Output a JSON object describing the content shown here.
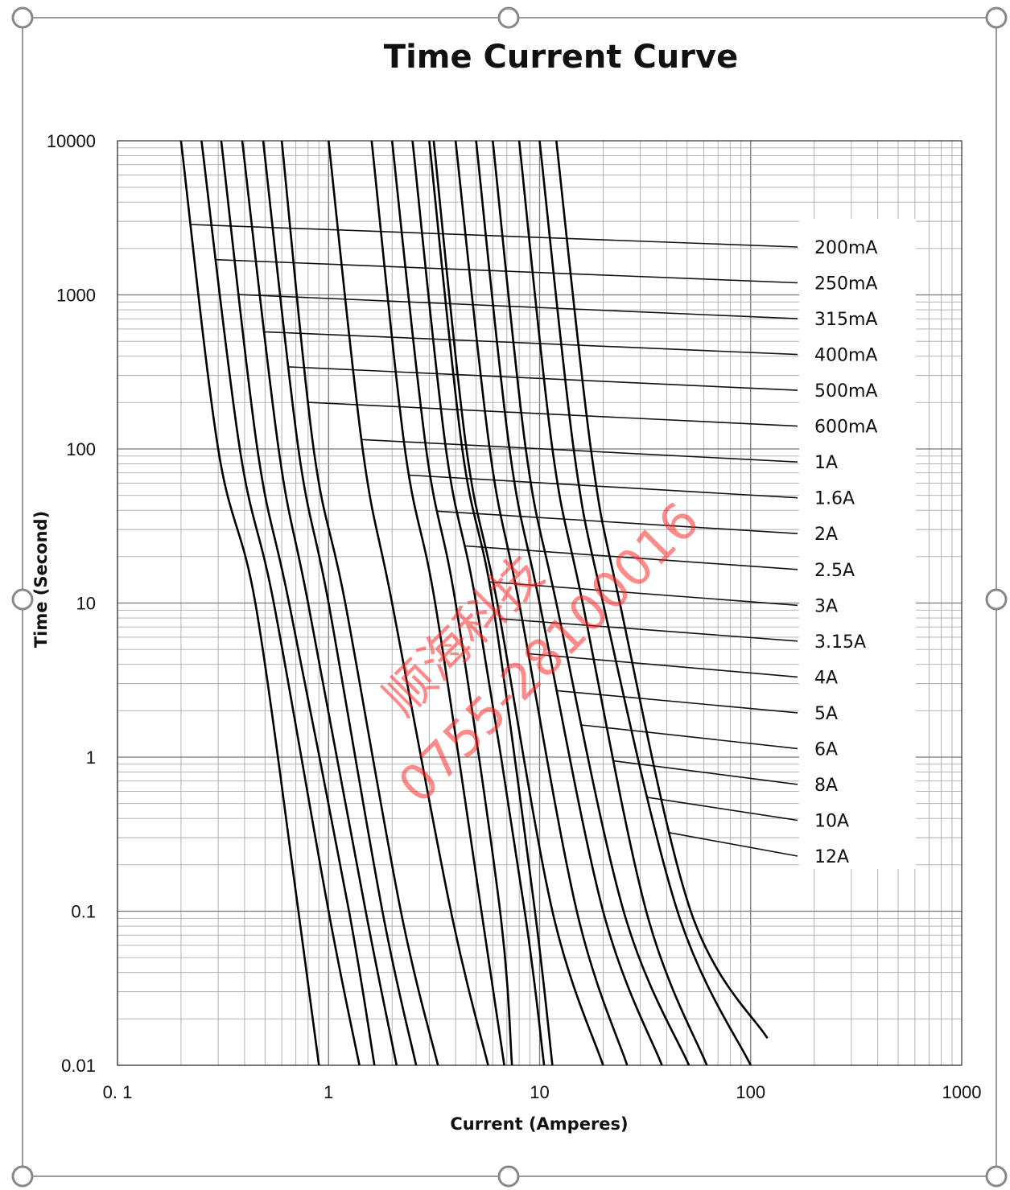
{
  "chart_data": {
    "type": "line",
    "title": "Time Current Curve",
    "xlabel": "Current  (Amperes)",
    "ylabel": "Time (Second)",
    "x_scale": "log",
    "y_scale": "log",
    "xlim": [
      0.1,
      1000
    ],
    "ylim": [
      0.01,
      10000
    ],
    "x_tick_labels": [
      "0. 1",
      "1",
      "10",
      "100",
      "1000"
    ],
    "y_tick_labels": [
      "10000",
      "1000",
      "100",
      "10",
      "1",
      "0.1",
      "0.01"
    ],
    "grid": true,
    "legend_placement": "right, labels with leader lines",
    "series": [
      {
        "name": "200mA",
        "x": [
          0.2,
          0.3,
          0.45,
          0.72,
          0.9
        ],
        "y": [
          10000,
          100,
          10,
          0.1,
          0.01
        ]
      },
      {
        "name": "250mA",
        "x": [
          0.25,
          0.38,
          0.55,
          1.0,
          1.4
        ],
        "y": [
          10000,
          100,
          10,
          0.1,
          0.01
        ]
      },
      {
        "name": "315mA",
        "x": [
          0.31,
          0.46,
          0.65,
          1.25,
          1.65
        ],
        "y": [
          10000,
          100,
          10,
          0.1,
          0.01
        ]
      },
      {
        "name": "400mA",
        "x": [
          0.39,
          0.58,
          0.8,
          1.5,
          2.1
        ],
        "y": [
          10000,
          100,
          10,
          0.1,
          0.01
        ]
      },
      {
        "name": "500mA",
        "x": [
          0.49,
          0.72,
          1.0,
          1.8,
          2.6
        ],
        "y": [
          10000,
          100,
          10,
          0.1,
          0.01
        ]
      },
      {
        "name": "600mA",
        "x": [
          0.6,
          0.85,
          1.2,
          2.2,
          3.3
        ],
        "y": [
          10000,
          100,
          10,
          0.1,
          0.01
        ]
      },
      {
        "name": "1A",
        "x": [
          1.0,
          1.45,
          2.0,
          3.8,
          5.7
        ],
        "y": [
          10000,
          100,
          10,
          0.1,
          0.01
        ]
      },
      {
        "name": "1.6A",
        "x": [
          1.6,
          2.3,
          3.2,
          5.3,
          6.8
        ],
        "y": [
          10000,
          100,
          10,
          0.1,
          0.01
        ]
      },
      {
        "name": "2A",
        "x": [
          2.0,
          2.9,
          4.0,
          6.5,
          7.4
        ],
        "y": [
          10000,
          100,
          10,
          0.1,
          0.01
        ]
      },
      {
        "name": "2.5A",
        "x": [
          2.5,
          3.6,
          5.0,
          8.5,
          10.5
        ],
        "y": [
          10000,
          100,
          10,
          0.1,
          0.01
        ]
      },
      {
        "name": "3A",
        "x": [
          3.0,
          4.3,
          6.0,
          9.5,
          11.5
        ],
        "y": [
          10000,
          100,
          10,
          0.1,
          0.01
        ]
      },
      {
        "name": "3.15A",
        "x": [
          3.15,
          4.5,
          6.3,
          11.5,
          20
        ],
        "y": [
          10000,
          100,
          10,
          0.1,
          0.01
        ]
      },
      {
        "name": "4A",
        "x": [
          4.0,
          5.8,
          8.0,
          15,
          26
        ],
        "y": [
          10000,
          100,
          10,
          0.1,
          0.01
        ]
      },
      {
        "name": "5A",
        "x": [
          5.0,
          7.2,
          10.0,
          20,
          38
        ],
        "y": [
          10000,
          100,
          10,
          0.1,
          0.01
        ]
      },
      {
        "name": "6A",
        "x": [
          6.0,
          8.6,
          12.0,
          25,
          51
        ],
        "y": [
          10000,
          100,
          10,
          0.1,
          0.01
        ]
      },
      {
        "name": "8A",
        "x": [
          8.0,
          11.5,
          16.0,
          32,
          62
        ],
        "y": [
          10000,
          100,
          10,
          0.1,
          0.01
        ]
      },
      {
        "name": "10A",
        "x": [
          10.0,
          14.5,
          20.0,
          45,
          100
        ],
        "y": [
          10000,
          100,
          10,
          0.1,
          0.01
        ]
      },
      {
        "name": "12A",
        "x": [
          12.0,
          17.5,
          24.0,
          52,
          120
        ],
        "y": [
          10000,
          100,
          10,
          0.1,
          0.015
        ]
      }
    ],
    "annotations": [
      "顺海科技",
      "0755-28100016"
    ]
  }
}
